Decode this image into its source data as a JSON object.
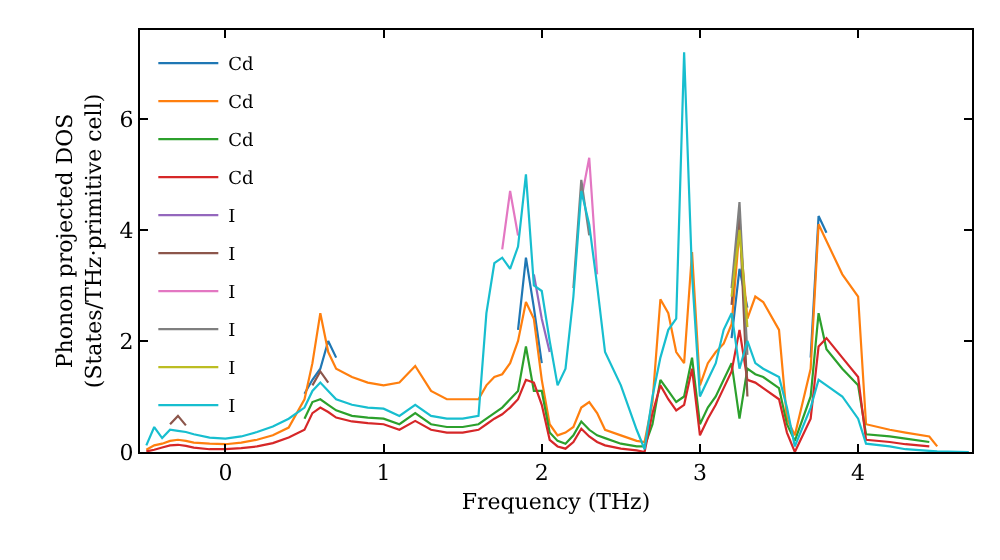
{
  "chart_data": {
    "type": "line",
    "xlabel": "Frequency (THz)",
    "ylabel": "Phonon projected DOS\n(States/THz·primitive cell)",
    "xlim": [
      -0.54,
      4.72
    ],
    "ylim": [
      0,
      7.6
    ],
    "xticks": [
      0,
      1,
      2,
      3,
      4
    ],
    "yticks": [
      0,
      2,
      4,
      6
    ],
    "grid": false,
    "legend": "top left",
    "marker": "none",
    "line_style": "solid",
    "x": [
      -0.5,
      -0.45,
      -0.4,
      -0.35,
      -0.3,
      -0.25,
      -0.2,
      -0.1,
      0,
      0.1,
      0.2,
      0.3,
      0.4,
      0.5,
      0.55,
      0.6,
      0.65,
      0.7,
      0.8,
      0.9,
      1.0,
      1.1,
      1.2,
      1.3,
      1.4,
      1.5,
      1.6,
      1.65,
      1.7,
      1.75,
      1.8,
      1.85,
      1.9,
      1.95,
      2.0,
      2.05,
      2.1,
      2.15,
      2.2,
      2.25,
      2.3,
      2.35,
      2.4,
      2.5,
      2.6,
      2.65,
      2.7,
      2.75,
      2.8,
      2.85,
      2.9,
      2.95,
      3.0,
      3.05,
      3.1,
      3.15,
      3.2,
      3.25,
      3.3,
      3.35,
      3.4,
      3.5,
      3.55,
      3.6,
      3.7,
      3.75,
      3.8,
      3.9,
      4.0,
      4.05,
      4.2,
      4.3,
      4.45,
      4.5,
      4.7
    ],
    "series": [
      {
        "name": "Cd",
        "color": "#1f77b4",
        "values": [
          null,
          null,
          null,
          null,
          null,
          null,
          null,
          null,
          null,
          null,
          null,
          null,
          null,
          1.05,
          1.3,
          1.5,
          2.0,
          1.7,
          null,
          null,
          null,
          null,
          null,
          null,
          null,
          null,
          null,
          null,
          null,
          null,
          null,
          2.2,
          3.5,
          2.6,
          1.6,
          null,
          null,
          null,
          null,
          null,
          null,
          null,
          null,
          null,
          null,
          null,
          null,
          null,
          null,
          null,
          null,
          null,
          null,
          null,
          null,
          null,
          2.05,
          3.3,
          2.6,
          null,
          null,
          null,
          null,
          null,
          1.7,
          4.25,
          3.95,
          null,
          null,
          null,
          null,
          null,
          null,
          null,
          null
        ]
      },
      {
        "name": "Cd",
        "color": "#ff7f0e",
        "values": [
          0.04,
          0.12,
          0.15,
          0.2,
          0.22,
          0.2,
          0.17,
          0.15,
          0.14,
          0.17,
          0.22,
          0.3,
          0.44,
          0.95,
          1.6,
          2.5,
          1.8,
          1.5,
          1.35,
          1.25,
          1.2,
          1.25,
          1.55,
          1.1,
          0.95,
          0.95,
          0.95,
          1.2,
          1.35,
          1.4,
          1.6,
          2.0,
          2.7,
          2.4,
          1.3,
          0.5,
          0.3,
          0.35,
          0.45,
          0.8,
          0.9,
          0.7,
          0.4,
          0.3,
          0.2,
          0.18,
          0.9,
          2.75,
          2.5,
          1.8,
          1.6,
          3.6,
          1.2,
          1.6,
          1.8,
          1.95,
          2.3,
          4.0,
          2.4,
          2.8,
          2.7,
          2.2,
          0.6,
          0.3,
          1.5,
          4.1,
          3.8,
          3.2,
          2.8,
          0.5,
          0.4,
          0.35,
          0.28,
          0.1,
          null
        ]
      },
      {
        "name": "Cd",
        "color": "#2ca02c",
        "values": [
          null,
          null,
          null,
          null,
          null,
          null,
          null,
          null,
          null,
          null,
          null,
          null,
          null,
          0.6,
          0.9,
          0.95,
          0.85,
          0.75,
          0.65,
          0.62,
          0.6,
          0.5,
          0.7,
          0.5,
          0.45,
          0.45,
          0.5,
          0.6,
          0.7,
          0.8,
          0.95,
          1.1,
          1.9,
          1.1,
          1.1,
          0.35,
          0.2,
          0.15,
          0.3,
          0.55,
          0.4,
          0.3,
          0.25,
          0.15,
          0.1,
          0.1,
          0.5,
          1.3,
          1.1,
          0.9,
          1.0,
          1.7,
          0.5,
          0.8,
          1.0,
          1.3,
          1.6,
          0.6,
          1.5,
          1.4,
          1.35,
          1.15,
          0.5,
          0.2,
          1.0,
          2.5,
          1.85,
          1.5,
          1.2,
          0.32,
          0.28,
          0.24,
          0.18,
          null,
          null
        ]
      },
      {
        "name": "Cd",
        "color": "#d62728",
        "values": [
          0.01,
          0.04,
          0.08,
          0.12,
          0.13,
          0.11,
          0.08,
          0.05,
          0.05,
          0.07,
          0.1,
          0.16,
          0.26,
          0.4,
          0.7,
          0.8,
          0.72,
          0.62,
          0.55,
          0.52,
          0.5,
          0.4,
          0.56,
          0.4,
          0.35,
          0.35,
          0.4,
          0.5,
          0.6,
          0.68,
          0.8,
          0.95,
          1.3,
          1.25,
          0.85,
          0.22,
          0.1,
          0.06,
          0.18,
          0.42,
          0.28,
          0.18,
          0.12,
          0.06,
          0.03,
          0.0,
          0.7,
          1.2,
          0.95,
          0.75,
          0.85,
          1.5,
          0.3,
          0.6,
          0.85,
          1.15,
          1.45,
          2.2,
          1.3,
          1.25,
          1.15,
          0.95,
          0.35,
          0.0,
          0.6,
          1.9,
          2.05,
          1.7,
          1.35,
          0.22,
          0.18,
          0.14,
          0.1,
          null,
          null
        ]
      },
      {
        "name": "I",
        "color": "#9467bd",
        "values": [
          null,
          null,
          null,
          null,
          null,
          null,
          null,
          null,
          null,
          null,
          null,
          null,
          null,
          null,
          null,
          null,
          null,
          null,
          null,
          null,
          null,
          null,
          null,
          null,
          null,
          null,
          null,
          null,
          null,
          null,
          null,
          null,
          null,
          3.2,
          2.4,
          1.8,
          null,
          null,
          null,
          null,
          null,
          null,
          null,
          null,
          null,
          null,
          null,
          null,
          null,
          null,
          null,
          null,
          null,
          null,
          null,
          null,
          null,
          null,
          null,
          null,
          null,
          null,
          null,
          null,
          null,
          null,
          null,
          null,
          null,
          null,
          null,
          null,
          null,
          null,
          null
        ]
      },
      {
        "name": "I",
        "color": "#8c564b",
        "values": [
          null,
          null,
          null,
          0.5,
          0.65,
          0.48,
          null,
          null,
          null,
          null,
          null,
          null,
          null,
          null,
          1.2,
          1.45,
          1.25,
          null,
          null,
          null,
          null,
          null,
          null,
          null,
          null,
          null,
          null,
          null,
          null,
          null,
          null,
          null,
          null,
          null,
          null,
          null,
          null,
          null,
          null,
          null,
          null,
          null,
          null,
          null,
          null,
          null,
          null,
          null,
          null,
          null,
          null,
          null,
          null,
          null,
          null,
          null,
          2.65,
          4.3,
          1.0,
          null,
          null,
          null,
          null,
          null,
          null,
          null,
          null,
          null,
          null,
          null,
          null,
          null,
          null,
          null,
          null
        ]
      },
      {
        "name": "I",
        "color": "#e377c2",
        "values": [
          null,
          null,
          null,
          null,
          null,
          null,
          null,
          null,
          null,
          null,
          null,
          null,
          null,
          null,
          null,
          null,
          null,
          null,
          null,
          null,
          null,
          null,
          null,
          null,
          null,
          null,
          null,
          null,
          null,
          3.65,
          4.7,
          3.9,
          null,
          null,
          null,
          null,
          null,
          null,
          null,
          4.55,
          5.3,
          3.2,
          null,
          null,
          null,
          null,
          null,
          null,
          null,
          null,
          null,
          null,
          null,
          null,
          null,
          null,
          null,
          null,
          null,
          null,
          null,
          null,
          null,
          null,
          null,
          null,
          null,
          null,
          null,
          null,
          null,
          null,
          null,
          null,
          null
        ]
      },
      {
        "name": "I",
        "color": "#7f7f7f",
        "values": [
          null,
          null,
          null,
          null,
          null,
          null,
          null,
          null,
          null,
          null,
          null,
          null,
          null,
          null,
          null,
          null,
          null,
          null,
          null,
          null,
          null,
          null,
          null,
          null,
          null,
          null,
          null,
          null,
          null,
          null,
          null,
          null,
          null,
          null,
          null,
          null,
          null,
          null,
          2.95,
          4.9,
          3.9,
          null,
          null,
          null,
          null,
          null,
          null,
          null,
          null,
          null,
          null,
          null,
          null,
          null,
          null,
          null,
          2.95,
          4.5,
          1.75,
          null,
          null,
          null,
          null,
          null,
          null,
          null,
          null,
          null,
          null,
          null,
          null,
          null,
          null,
          null,
          null
        ]
      },
      {
        "name": "I",
        "color": "#bcbd22",
        "values": [
          null,
          null,
          null,
          null,
          null,
          null,
          null,
          null,
          null,
          null,
          null,
          null,
          null,
          null,
          null,
          null,
          null,
          null,
          null,
          null,
          null,
          null,
          null,
          null,
          null,
          null,
          null,
          null,
          null,
          null,
          null,
          null,
          null,
          null,
          null,
          null,
          null,
          null,
          null,
          null,
          null,
          null,
          null,
          null,
          null,
          null,
          null,
          null,
          null,
          null,
          null,
          null,
          null,
          null,
          null,
          null,
          2.8,
          4.0,
          2.25,
          null,
          null,
          null,
          null,
          null,
          null,
          null,
          null,
          null,
          null,
          null,
          null,
          null,
          null,
          null,
          null
        ]
      },
      {
        "name": "I",
        "color": "#17becf",
        "values": [
          0.12,
          0.45,
          0.25,
          0.4,
          0.38,
          0.36,
          0.32,
          0.26,
          0.24,
          0.28,
          0.36,
          0.46,
          0.6,
          0.8,
          1.1,
          1.25,
          1.1,
          0.95,
          0.85,
          0.8,
          0.78,
          0.65,
          0.85,
          0.65,
          0.6,
          0.6,
          0.65,
          2.5,
          3.4,
          3.5,
          3.3,
          3.7,
          5.0,
          3.0,
          2.9,
          2.0,
          1.2,
          1.5,
          2.8,
          4.7,
          4.1,
          3.0,
          1.8,
          1.2,
          0.4,
          0.05,
          1.0,
          1.7,
          2.2,
          2.4,
          7.2,
          3.2,
          1.0,
          1.3,
          1.6,
          2.2,
          2.5,
          1.5,
          2.0,
          1.6,
          1.5,
          1.35,
          0.8,
          0.1,
          0.8,
          1.3,
          1.2,
          1.0,
          0.6,
          0.15,
          0.1,
          0.05,
          0.02,
          0.01,
          0.0
        ]
      }
    ]
  }
}
